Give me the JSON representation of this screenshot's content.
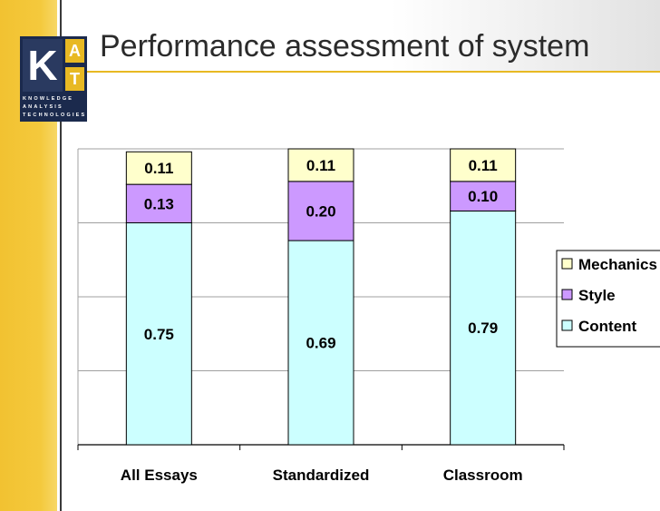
{
  "header": {
    "title": "Performance assessment of system"
  },
  "logo": {
    "big_letter": "K",
    "letter_a": "A",
    "letter_t": "T",
    "line1": "KNOWLEDGE",
    "line2": "ANALYSIS",
    "line3": "TECHNOLOGIES"
  },
  "colors": {
    "Mechanics": "#ffffcc",
    "Style": "#cc99ff",
    "Content": "#ccffff",
    "accent": "#e8b923"
  },
  "chart_data": {
    "type": "bar",
    "stacked": true,
    "categories": [
      "All Essays",
      "Standardized",
      "Classroom"
    ],
    "series": [
      {
        "name": "Content",
        "values": [
          0.75,
          0.69,
          0.79
        ],
        "labels": [
          "0.75",
          "0.69",
          "0.79"
        ]
      },
      {
        "name": "Style",
        "values": [
          0.13,
          0.2,
          0.1
        ],
        "labels": [
          "0.13",
          "0.20",
          "0.10"
        ]
      },
      {
        "name": "Mechanics",
        "values": [
          0.11,
          0.11,
          0.11
        ],
        "labels": [
          "0.11",
          "0.11",
          "0.11"
        ]
      }
    ],
    "legend_order": [
      "Mechanics",
      "Style",
      "Content"
    ],
    "ylim": [
      0,
      1
    ],
    "grid": true,
    "legend": "right",
    "title": "",
    "xlabel": "",
    "ylabel": ""
  }
}
